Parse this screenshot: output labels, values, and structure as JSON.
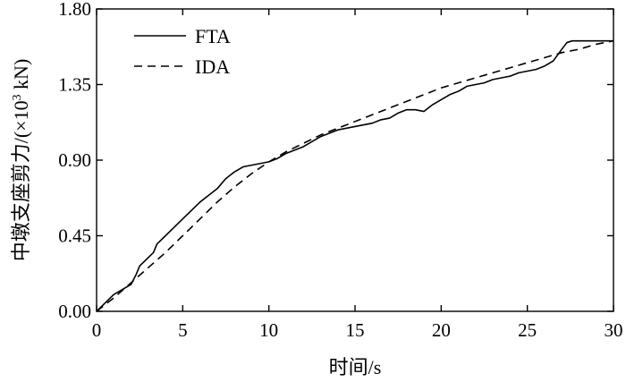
{
  "chart_data": {
    "type": "line",
    "title": "",
    "xlabel": "时间/s",
    "ylabel": "中墩支座剪力/(×10",
    "ylabel_superscript": "3",
    "ylabel_suffix": " kN)",
    "xlim": [
      0,
      30
    ],
    "ylim": [
      0,
      1.8
    ],
    "x_ticks": [
      0,
      5,
      10,
      15,
      20,
      25,
      30
    ],
    "x_tick_labels": [
      "0",
      "5",
      "10",
      "15",
      "20",
      "25",
      "30"
    ],
    "y_ticks": [
      0,
      0.45,
      0.9,
      1.35,
      1.8
    ],
    "y_tick_labels": [
      "0.00",
      "0.45",
      "0.90",
      "1.35",
      "1.80"
    ],
    "grid": false,
    "legend_position": "top-left",
    "series": [
      {
        "name": "FTA",
        "style": "solid",
        "color": "#000000",
        "x": [
          0,
          0.5,
          1.0,
          1.5,
          2.0,
          2.3,
          2.5,
          3.0,
          3.3,
          3.5,
          4.0,
          4.5,
          5.0,
          5.5,
          6.0,
          6.5,
          7.0,
          7.5,
          8.0,
          8.5,
          9.0,
          9.5,
          10.0,
          10.5,
          11.0,
          11.5,
          12.0,
          12.5,
          13.0,
          13.5,
          14.0,
          14.5,
          15.0,
          15.5,
          16.0,
          16.5,
          17.0,
          17.5,
          18.0,
          18.5,
          19.0,
          19.5,
          20.0,
          20.5,
          21.0,
          21.5,
          22.0,
          22.5,
          23.0,
          23.5,
          24.0,
          24.5,
          25.0,
          25.5,
          26.0,
          26.5,
          27.0,
          27.3,
          27.6,
          28.0,
          29.0,
          30.0
        ],
        "values": [
          0.0,
          0.05,
          0.1,
          0.13,
          0.16,
          0.22,
          0.27,
          0.32,
          0.35,
          0.4,
          0.45,
          0.5,
          0.55,
          0.6,
          0.65,
          0.69,
          0.73,
          0.79,
          0.83,
          0.86,
          0.87,
          0.88,
          0.89,
          0.91,
          0.94,
          0.96,
          0.98,
          1.01,
          1.04,
          1.06,
          1.08,
          1.09,
          1.1,
          1.11,
          1.12,
          1.14,
          1.15,
          1.18,
          1.2,
          1.2,
          1.19,
          1.23,
          1.26,
          1.29,
          1.31,
          1.34,
          1.35,
          1.36,
          1.38,
          1.39,
          1.4,
          1.42,
          1.43,
          1.44,
          1.46,
          1.49,
          1.56,
          1.6,
          1.61,
          1.61,
          1.61,
          1.61
        ]
      },
      {
        "name": "IDA",
        "style": "dashed",
        "color": "#000000",
        "x": [
          0,
          1,
          2,
          3,
          4,
          5,
          6,
          7,
          8,
          9,
          10,
          11,
          12,
          13,
          14,
          15,
          16,
          17,
          18,
          19,
          20,
          21,
          22,
          23,
          24,
          25,
          26,
          27,
          28,
          29,
          30
        ],
        "values": [
          0.0,
          0.08,
          0.17,
          0.26,
          0.35,
          0.45,
          0.55,
          0.65,
          0.74,
          0.82,
          0.89,
          0.95,
          1.0,
          1.05,
          1.09,
          1.13,
          1.17,
          1.21,
          1.25,
          1.29,
          1.33,
          1.36,
          1.39,
          1.42,
          1.45,
          1.48,
          1.51,
          1.54,
          1.56,
          1.59,
          1.61
        ]
      }
    ]
  }
}
